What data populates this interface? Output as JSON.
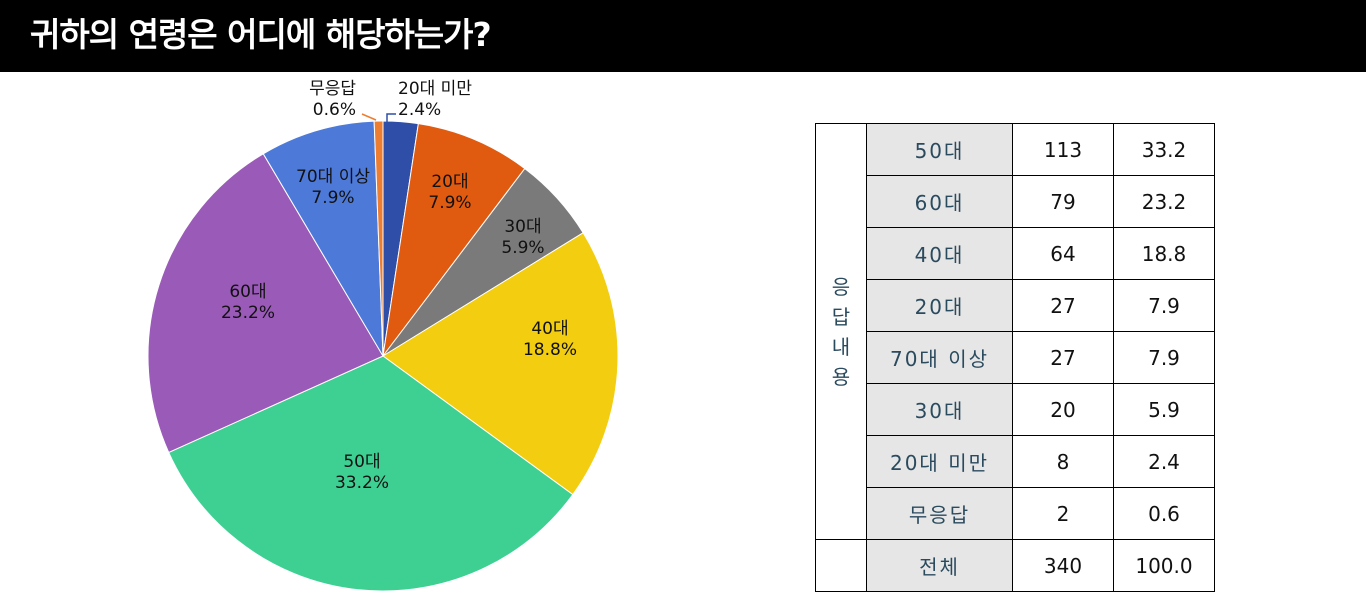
{
  "header": {
    "title": "귀하의 연령은 어디에 해당하는가?"
  },
  "chart_data": {
    "type": "pie",
    "slices": [
      {
        "label": "20대 미만",
        "pct_text": "2.4%",
        "value": 2.4,
        "color": "#2e4ea8"
      },
      {
        "label": "20대",
        "pct_text": "7.9%",
        "value": 7.9,
        "color": "#e05a10"
      },
      {
        "label": "30대",
        "pct_text": "5.9%",
        "value": 5.9,
        "color": "#7a7a7a"
      },
      {
        "label": "40대",
        "pct_text": "18.8%",
        "value": 18.8,
        "color": "#f2cd10"
      },
      {
        "label": "50대",
        "pct_text": "33.2%",
        "value": 33.2,
        "color": "#3ecf92"
      },
      {
        "label": "60대",
        "pct_text": "23.2%",
        "value": 23.2,
        "color": "#9a5ab8"
      },
      {
        "label": "70대 이상",
        "pct_text": "7.9%",
        "value": 7.9,
        "color": "#4d79d8"
      },
      {
        "label": "무응답",
        "pct_text": "0.6%",
        "value": 0.6,
        "color": "#ed7d31"
      }
    ]
  },
  "table": {
    "side_label": "응답내용",
    "rows": [
      {
        "category": "50대",
        "count": "113",
        "percent": "33.2"
      },
      {
        "category": "60대",
        "count": "79",
        "percent": "23.2"
      },
      {
        "category": "40대",
        "count": "64",
        "percent": "18.8"
      },
      {
        "category": "20대",
        "count": "27",
        "percent": "7.9"
      },
      {
        "category": "70대 이상",
        "count": "27",
        "percent": "7.9"
      },
      {
        "category": "30대",
        "count": "20",
        "percent": "5.9"
      },
      {
        "category": "20대 미만",
        "count": "8",
        "percent": "2.4"
      },
      {
        "category": "무응답",
        "count": "2",
        "percent": "0.6"
      },
      {
        "category": "전체",
        "count": "340",
        "percent": "100.0"
      }
    ]
  }
}
